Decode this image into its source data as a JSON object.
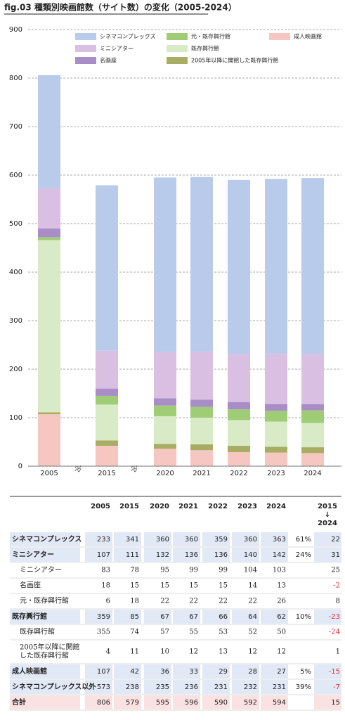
{
  "title": "fig.03 種類別映画館数（サイト数）の変化（2005-2024）",
  "chart_data": {
    "type": "stacked-bar",
    "categories": [
      "2005",
      "2015",
      "2020",
      "2021",
      "2022",
      "2023",
      "2024"
    ],
    "ylim": [
      0,
      900
    ],
    "yticks": [
      0,
      100,
      200,
      300,
      400,
      500,
      600,
      700,
      800,
      900
    ],
    "grid": true,
    "series": [
      {
        "name": "成人映画館",
        "color": "#f6c6c1",
        "values": [
          107,
          42,
          36,
          33,
          29,
          28,
          27
        ]
      },
      {
        "name": "2005年以降に開館した既存興行館",
        "color": "#a9ac63",
        "values": [
          4,
          11,
          10,
          12,
          13,
          12,
          12
        ]
      },
      {
        "name": "既存興行館",
        "color": "#d9eac6",
        "values": [
          355,
          74,
          57,
          55,
          53,
          52,
          50
        ]
      },
      {
        "name": "元・既存興行館",
        "color": "#9fcd76",
        "values": [
          6,
          18,
          22,
          22,
          22,
          22,
          26
        ]
      },
      {
        "name": "名画座",
        "color": "#a98dc7",
        "values": [
          18,
          15,
          15,
          15,
          15,
          14,
          13
        ]
      },
      {
        "name": "ミニシアター",
        "color": "#d9bfe1",
        "values": [
          83,
          78,
          95,
          99,
          99,
          104,
          103
        ]
      },
      {
        "name": "シネマコンプレックス",
        "color": "#b8cbeb",
        "values": [
          233,
          341,
          360,
          360,
          359,
          360,
          363
        ]
      }
    ]
  },
  "table": {
    "header": [
      "2005",
      "2015",
      "2020",
      "2021",
      "2022",
      "2023",
      "2024"
    ],
    "change_header": [
      "2015",
      "↓",
      "2024"
    ],
    "rows": [
      {
        "label": "シネマコンプレックス",
        "level": "main",
        "values": [
          233,
          341,
          360,
          360,
          359,
          360,
          363
        ],
        "share": "61%",
        "change": 22
      },
      {
        "label": "ミニシアター",
        "level": "main",
        "values": [
          107,
          111,
          132,
          136,
          136,
          140,
          142
        ],
        "share": "24%",
        "change": 31
      },
      {
        "label": "ミニシアター",
        "level": "sub",
        "values": [
          83,
          78,
          95,
          99,
          99,
          104,
          103
        ],
        "change": 25
      },
      {
        "label": "名画座",
        "level": "sub",
        "values": [
          18,
          15,
          15,
          15,
          15,
          14,
          13
        ],
        "change": -2
      },
      {
        "label": "元・既存興行館",
        "level": "sub",
        "values": [
          6,
          18,
          22,
          22,
          22,
          22,
          26
        ],
        "change": 8
      },
      {
        "label": "既存興行館",
        "level": "main",
        "values": [
          359,
          85,
          67,
          67,
          66,
          64,
          62
        ],
        "share": "10%",
        "change": -23
      },
      {
        "label": "既存興行館",
        "level": "sub",
        "values": [
          355,
          74,
          57,
          55,
          53,
          52,
          50
        ],
        "change": -24
      },
      {
        "label": [
          "2005年以降に開館",
          "した既存興行館"
        ],
        "level": "sub",
        "values": [
          4,
          11,
          10,
          12,
          13,
          12,
          12
        ],
        "change": 1
      },
      {
        "label": "成人映画館",
        "level": "main",
        "values": [
          107,
          42,
          36,
          33,
          29,
          28,
          27
        ],
        "share": "5%",
        "change": -15
      },
      {
        "label": "シネマコンプレックス以外",
        "level": "main",
        "values": [
          573,
          238,
          235,
          236,
          231,
          232,
          231
        ],
        "share": "39%",
        "change": -7
      },
      {
        "label": "合計",
        "level": "total",
        "values": [
          806,
          579,
          595,
          596,
          590,
          592,
          594
        ],
        "change": 15
      }
    ]
  }
}
